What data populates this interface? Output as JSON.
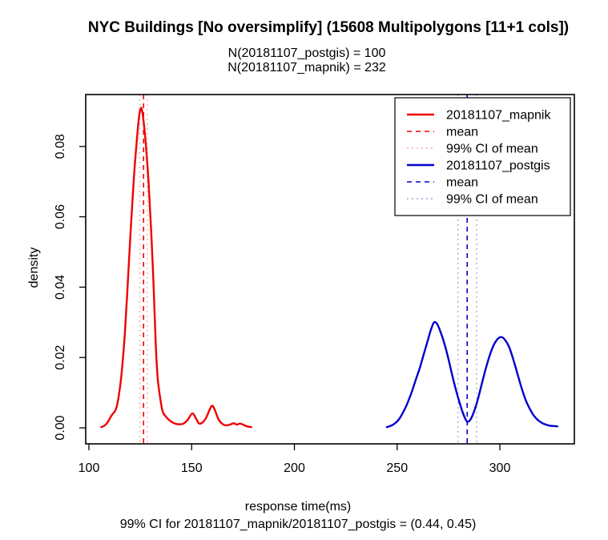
{
  "title": "NYC Buildings [No oversimplify] (15608 Multipolygons [11+1 cols])",
  "subtitle_lines": [
    "N(20181107_postgis) = 100",
    "N(20181107_mapnik) = 232"
  ],
  "xlabel": "response time(ms)",
  "caption": "99% CI for 20181107_mapnik/20181107_postgis = (0.44, 0.45)",
  "chart_data": {
    "type": "line",
    "title": "NYC Buildings [No oversimplify] (15608 Multipolygons [11+1 cols])",
    "subtitle": [
      "N(20181107_postgis) = 100",
      "N(20181107_mapnik) = 232"
    ],
    "xlabel": "response time(ms)",
    "ylabel": "density",
    "caption": "99% CI for 20181107_mapnik/20181107_postgis = (0.44, 0.45)",
    "xlim": [
      98,
      336
    ],
    "ylim": [
      0,
      0.0948
    ],
    "grid": false,
    "legend_position": "top-right",
    "xticks": [
      100,
      150,
      200,
      250,
      300
    ],
    "ytick_labels": [
      "0.00",
      "0.02",
      "0.04",
      "0.06",
      "0.08"
    ],
    "ytick_values": [
      0,
      0.02,
      0.04,
      0.06,
      0.08
    ],
    "series": [
      {
        "name": "20181107_mapnik",
        "color": "#f00000",
        "ci_color": "#f2a2a2",
        "mean": 126.6,
        "ci99_of_mean": [
          124.7,
          128.4
        ],
        "points": [
          [
            106,
            0.0002
          ],
          [
            107.5,
            0.0006
          ],
          [
            109,
            0.0015
          ],
          [
            110.5,
            0.003
          ],
          [
            111.5,
            0.0039
          ],
          [
            112.5,
            0.0046
          ],
          [
            113.5,
            0.006
          ],
          [
            114.5,
            0.009
          ],
          [
            116,
            0.016
          ],
          [
            117.5,
            0.027
          ],
          [
            119,
            0.042
          ],
          [
            120.5,
            0.058
          ],
          [
            122,
            0.072
          ],
          [
            123.5,
            0.083
          ],
          [
            124.5,
            0.0888
          ],
          [
            125.4,
            0.091
          ],
          [
            126.3,
            0.0885
          ],
          [
            127.5,
            0.082
          ],
          [
            129,
            0.07
          ],
          [
            130.3,
            0.056
          ],
          [
            131.5,
            0.04
          ],
          [
            132.5,
            0.024
          ],
          [
            133.5,
            0.014
          ],
          [
            134.8,
            0.008
          ],
          [
            136,
            0.0045
          ],
          [
            138,
            0.0028
          ],
          [
            140,
            0.0018
          ],
          [
            142,
            0.0012
          ],
          [
            144,
            0.001
          ],
          [
            146,
            0.0012
          ],
          [
            148,
            0.0022
          ],
          [
            150.3,
            0.0041
          ],
          [
            152,
            0.0028
          ],
          [
            153.5,
            0.0013
          ],
          [
            155,
            0.0014
          ],
          [
            157,
            0.0028
          ],
          [
            158.8,
            0.0052
          ],
          [
            160,
            0.0063
          ],
          [
            161.2,
            0.0052
          ],
          [
            163,
            0.0025
          ],
          [
            165,
            0.0011
          ],
          [
            167,
            0.0007
          ],
          [
            169,
            0.001
          ],
          [
            170.5,
            0.0013
          ],
          [
            172,
            0.0009
          ],
          [
            173.5,
            0.0012
          ],
          [
            175,
            0.0009
          ],
          [
            176.5,
            0.0005
          ],
          [
            178,
            0.0003
          ],
          [
            179,
            0.0002
          ]
        ]
      },
      {
        "name": "20181107_postgis",
        "color": "#0000cd",
        "ci_color": "#9a9ad0",
        "mean": 284.1,
        "ci99_of_mean": [
          279.6,
          288.7
        ],
        "points": [
          [
            245,
            0.0002
          ],
          [
            247,
            0.0006
          ],
          [
            249,
            0.0013
          ],
          [
            251,
            0.0025
          ],
          [
            253,
            0.0045
          ],
          [
            255,
            0.007
          ],
          [
            257,
            0.01
          ],
          [
            259,
            0.0135
          ],
          [
            261,
            0.017
          ],
          [
            263,
            0.021
          ],
          [
            265,
            0.025
          ],
          [
            266.5,
            0.028
          ],
          [
            268,
            0.03
          ],
          [
            269.5,
            0.0295
          ],
          [
            271,
            0.0275
          ],
          [
            273,
            0.024
          ],
          [
            275,
            0.0195
          ],
          [
            277,
            0.0145
          ],
          [
            279,
            0.01
          ],
          [
            281,
            0.006
          ],
          [
            282.5,
            0.0035
          ],
          [
            284,
            0.0018
          ],
          [
            285.5,
            0.0022
          ],
          [
            287,
            0.004
          ],
          [
            289,
            0.0075
          ],
          [
            291,
            0.012
          ],
          [
            293,
            0.0165
          ],
          [
            295,
            0.0205
          ],
          [
            297,
            0.0235
          ],
          [
            299,
            0.0253
          ],
          [
            300.8,
            0.0258
          ],
          [
            302.5,
            0.025
          ],
          [
            304.5,
            0.023
          ],
          [
            306.5,
            0.0195
          ],
          [
            308.5,
            0.0155
          ],
          [
            310.5,
            0.0115
          ],
          [
            312.5,
            0.008
          ],
          [
            314.5,
            0.0055
          ],
          [
            316.5,
            0.0035
          ],
          [
            318.5,
            0.0022
          ],
          [
            320.5,
            0.0014
          ],
          [
            322.5,
            0.0009
          ],
          [
            324.5,
            0.0006
          ],
          [
            326.5,
            0.0005
          ],
          [
            328,
            0.0004
          ]
        ]
      }
    ],
    "legend": [
      {
        "label": "20181107_mapnik",
        "style": "solid",
        "color": "#f00000"
      },
      {
        "label": "mean",
        "style": "dashed",
        "color": "#f00000"
      },
      {
        "label": "99% CI  of mean",
        "style": "dotted",
        "color": "#f2a2a2"
      },
      {
        "label": "20181107_postgis",
        "style": "solid",
        "color": "#0000cd"
      },
      {
        "label": "mean",
        "style": "dashed",
        "color": "#0000cd"
      },
      {
        "label": "99% CI  of mean",
        "style": "dotted",
        "color": "#9a9ad0"
      }
    ]
  }
}
